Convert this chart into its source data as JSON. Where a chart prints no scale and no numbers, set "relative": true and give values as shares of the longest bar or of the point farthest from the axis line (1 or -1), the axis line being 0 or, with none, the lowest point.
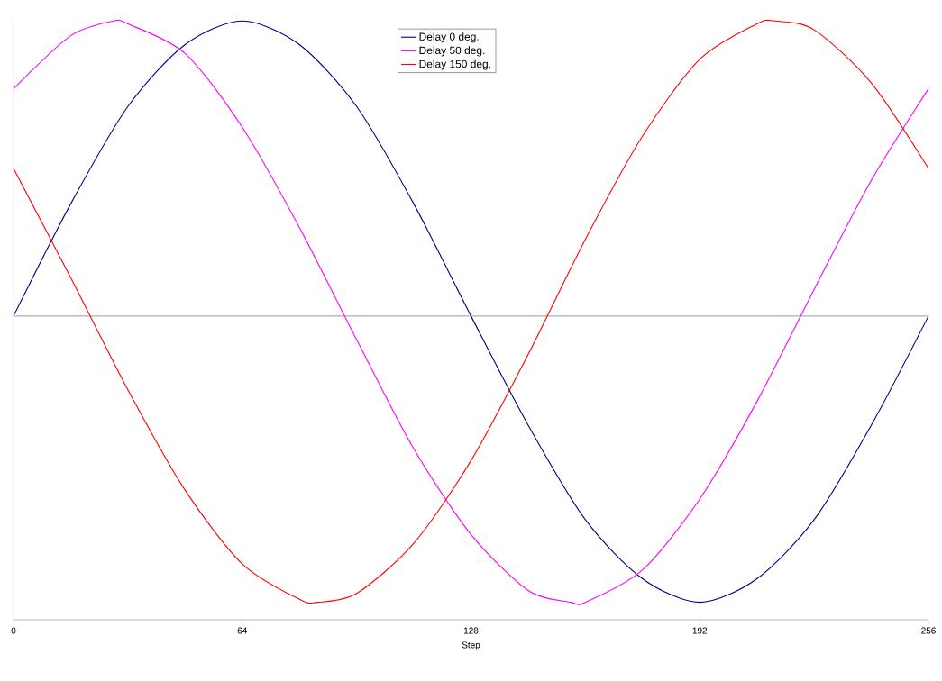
{
  "chart_data": {
    "type": "line",
    "relative": true,
    "xlabel": "Step",
    "xlim": [
      0,
      256
    ],
    "xticks": [
      0,
      64,
      128,
      192,
      256
    ],
    "legend": "top",
    "grid": false,
    "marker": "none",
    "line_style": "solid",
    "series": [
      {
        "name": "Delay 0 deg.",
        "color": "#000080",
        "x": [
          0,
          16,
          32,
          48,
          64,
          80,
          96,
          112,
          128,
          144,
          160,
          176,
          192,
          208,
          224,
          240,
          256
        ],
        "values": [
          0,
          0.38,
          0.71,
          0.92,
          1,
          0.92,
          0.71,
          0.38,
          0,
          -0.37,
          -0.69,
          -0.89,
          -0.97,
          -0.89,
          -0.69,
          -0.37,
          0
        ]
      },
      {
        "name": "Delay 50 deg.",
        "color": "#ff00ff",
        "x": [
          0,
          16,
          28,
          32,
          48,
          64,
          80,
          96,
          112,
          128,
          144,
          156,
          160,
          176,
          192,
          208,
          224,
          240,
          256
        ],
        "values": [
          0.77,
          0.95,
          1,
          0.99,
          0.89,
          0.64,
          0.3,
          -0.08,
          -0.45,
          -0.74,
          -0.93,
          -0.97,
          -0.97,
          -0.86,
          -0.62,
          -0.29,
          0.09,
          0.46,
          0.77
        ]
      },
      {
        "name": "Delay 150 deg.",
        "color": "#ff0000",
        "x": [
          0,
          16,
          32,
          48,
          64,
          80,
          85,
          96,
          112,
          128,
          144,
          160,
          176,
          192,
          208,
          213,
          224,
          240,
          256
        ],
        "values": [
          0.5,
          0.13,
          -0.25,
          -0.59,
          -0.84,
          -0.96,
          -0.97,
          -0.94,
          -0.77,
          -0.49,
          -0.13,
          0.26,
          0.61,
          0.87,
          0.99,
          1,
          0.97,
          0.79,
          0.5
        ]
      }
    ]
  }
}
